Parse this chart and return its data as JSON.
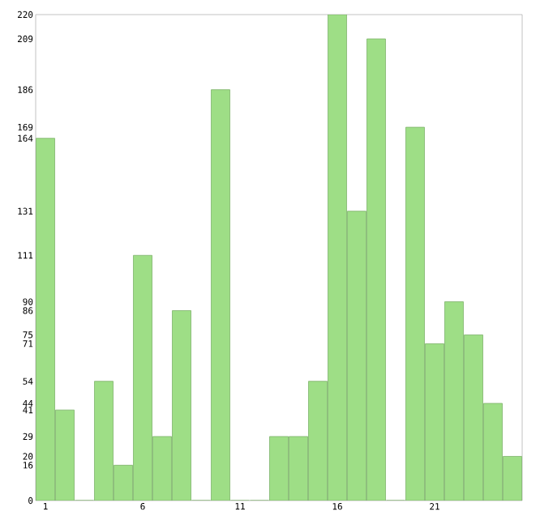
{
  "chart_data": {
    "type": "bar",
    "categories": [
      "1",
      null,
      null,
      null,
      null,
      "6",
      null,
      null,
      null,
      null,
      "11",
      null,
      null,
      null,
      null,
      "16",
      null,
      null,
      null,
      null,
      "21",
      null,
      null,
      null,
      null
    ],
    "values": [
      164,
      41,
      0,
      54,
      16,
      111,
      29,
      86,
      0,
      186,
      0,
      0,
      29,
      29,
      54,
      220,
      131,
      209,
      0,
      169,
      71,
      90,
      75,
      44,
      20
    ],
    "color": "#9ede86",
    "ylim": [
      0,
      220
    ],
    "yticks": [
      0,
      16,
      20,
      29,
      41,
      44,
      54,
      71,
      75,
      86,
      90,
      111,
      131,
      164,
      169,
      186,
      209,
      220
    ],
    "grid": false
  }
}
